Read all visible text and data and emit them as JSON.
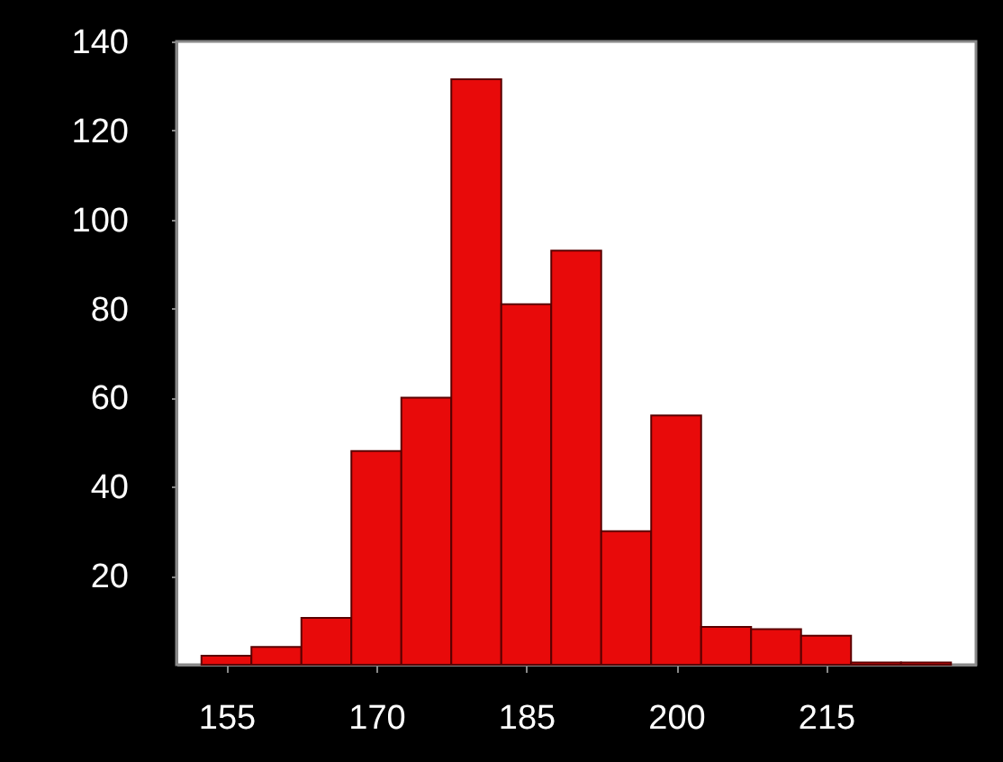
{
  "chart_data": {
    "type": "histogram",
    "bins": [
      152.5,
      157.5,
      162.5,
      167.5,
      172.5,
      177.5,
      182.5,
      187.5,
      192.5,
      197.5,
      202.5,
      207.5,
      212.5,
      217.5,
      222.5,
      227.5
    ],
    "values": [
      2,
      4,
      10.5,
      48,
      60,
      131.5,
      81,
      93,
      30,
      56,
      8.5,
      8,
      6.5,
      0.5,
      0.5
    ],
    "color": "#e80a0a",
    "xlim": [
      150,
      230
    ],
    "xticks": [
      155,
      170,
      185,
      200,
      215
    ],
    "ylim": [
      0,
      140
    ],
    "yticks": [
      20,
      40,
      60,
      80,
      100,
      120,
      140
    ],
    "grid": false
  }
}
